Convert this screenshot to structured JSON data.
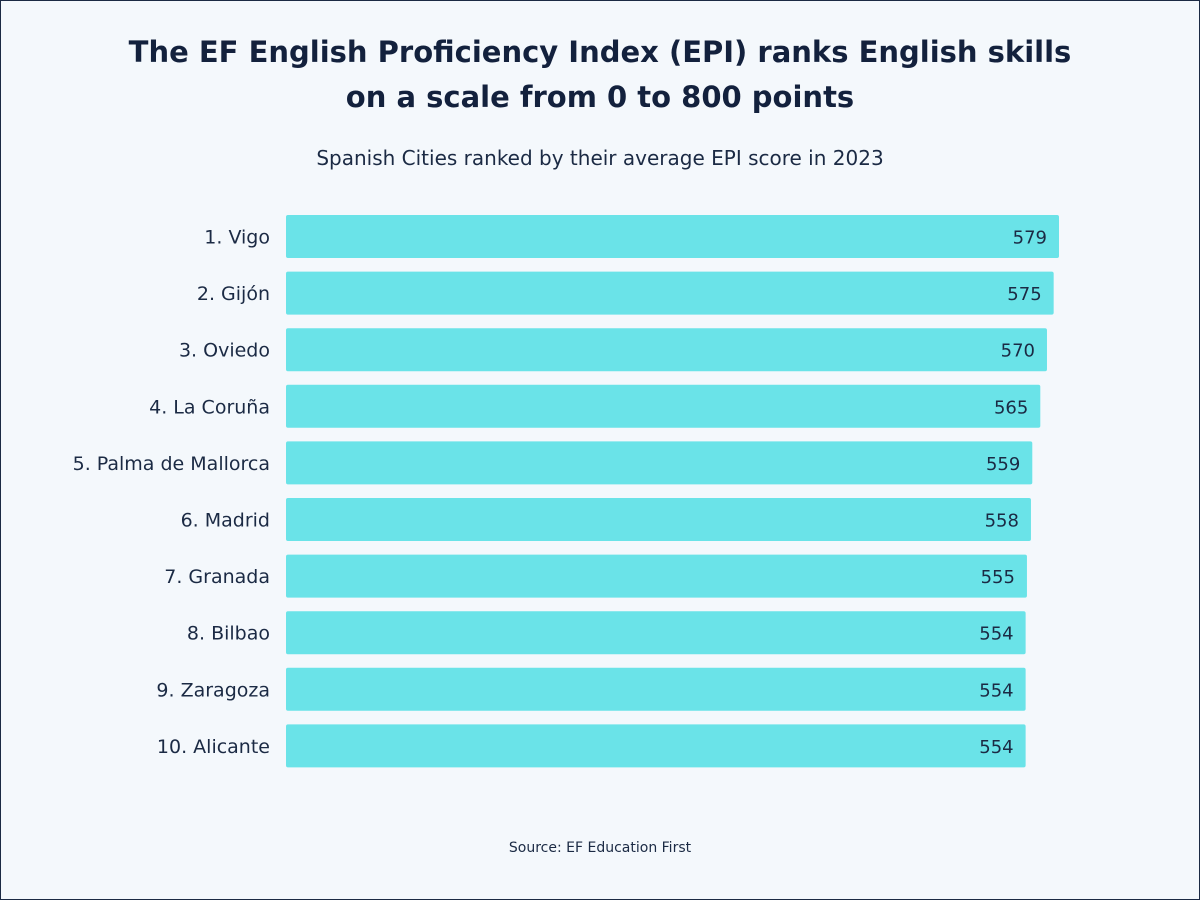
{
  "title_line1": "The EF English Proficiency Index (EPI) ranks English skills",
  "title_line2": "on a scale from 0 to 800 points",
  "subtitle": "Spanish Cities ranked by their average EPI score in 2023",
  "source": "Source: EF Education First",
  "colors": {
    "bar": "#6ae3e8",
    "text": "#1b2a44"
  },
  "chart_data": {
    "type": "bar",
    "orientation": "horizontal",
    "title": "The EF English Proficiency Index (EPI) ranks English skills on a scale from 0 to 800 points",
    "subtitle": "Spanish Cities ranked by their average EPI score in 2023",
    "categories": [
      "1. Vigo",
      "2. Gijón",
      "3. Oviedo",
      "4. La Coruña",
      "5. Palma de Mallorca",
      "6. Madrid",
      "7. Granada",
      "8. Bilbao",
      "9. Zaragoza",
      "10. Alicante"
    ],
    "values": [
      579,
      575,
      570,
      565,
      559,
      558,
      555,
      554,
      554,
      554
    ],
    "grid": false,
    "data_labels": true
  }
}
